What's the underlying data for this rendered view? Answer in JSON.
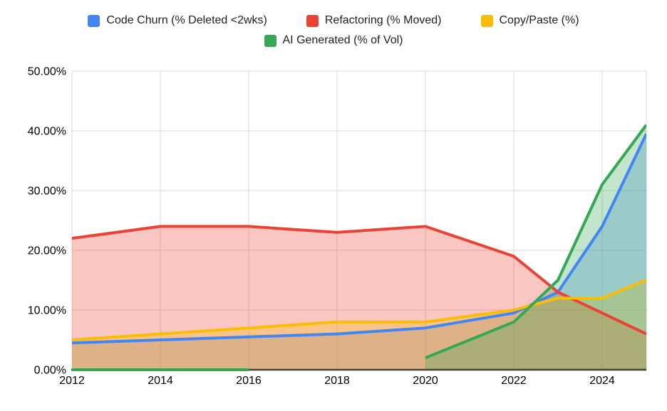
{
  "background": "#ffffff",
  "legend": {
    "items": [
      {
        "key": "code-churn",
        "label": "Code Churn (% Deleted <2wks)",
        "color": "#4285F4"
      },
      {
        "key": "refactoring",
        "label": "Refactoring (% Moved)",
        "color": "#EA4335"
      },
      {
        "key": "copy-paste",
        "label": "Copy/Paste (%)",
        "color": "#FBBC04"
      },
      {
        "key": "ai-generated",
        "label": "AI Generated (% of Vol)",
        "color": "#34A853"
      }
    ]
  },
  "chart_data": {
    "type": "area",
    "title": "",
    "xlabel": "",
    "ylabel": "",
    "x": [
      2012,
      2014,
      2016,
      2018,
      2020,
      2022,
      2023,
      2024,
      2025
    ],
    "series": [
      {
        "key": "code-churn",
        "name": "Code Churn (% Deleted <2wks)",
        "color": "#4285F4",
        "values": [
          4.5,
          5,
          5.5,
          6,
          7,
          9.5,
          13,
          24,
          39.5
        ]
      },
      {
        "key": "refactoring",
        "name": "Refactoring (% Moved)",
        "color": "#EA4335",
        "values": [
          22,
          24,
          24,
          23,
          24,
          19,
          13,
          9.5,
          6
        ]
      },
      {
        "key": "copy-paste",
        "name": "Copy/Paste (%)",
        "color": "#FBBC04",
        "values": [
          5,
          6,
          7,
          8,
          8,
          10,
          12,
          12,
          15
        ]
      },
      {
        "key": "ai-generated",
        "name": "AI Generated (% of Vol)",
        "color": "#34A853",
        "values": [
          0,
          0,
          0,
          null,
          2,
          8,
          15,
          31,
          41
        ]
      }
    ],
    "xlim": [
      2012,
      2025
    ],
    "ylim": [
      0,
      50
    ],
    "xticks": [
      2012,
      2014,
      2016,
      2018,
      2020,
      2022,
      2024
    ],
    "ytick_labels": [
      "0.00%",
      "10.00%",
      "20.00%",
      "30.00%",
      "40.00%",
      "50.00%"
    ],
    "ytick_values": [
      0,
      10,
      20,
      30,
      40,
      50
    ],
    "grid": true,
    "legend_position": "top",
    "fill_opacity": 0.3,
    "line_width": 4,
    "gridline_color": "#d9d9d9",
    "axis_line_color": "#424242"
  }
}
